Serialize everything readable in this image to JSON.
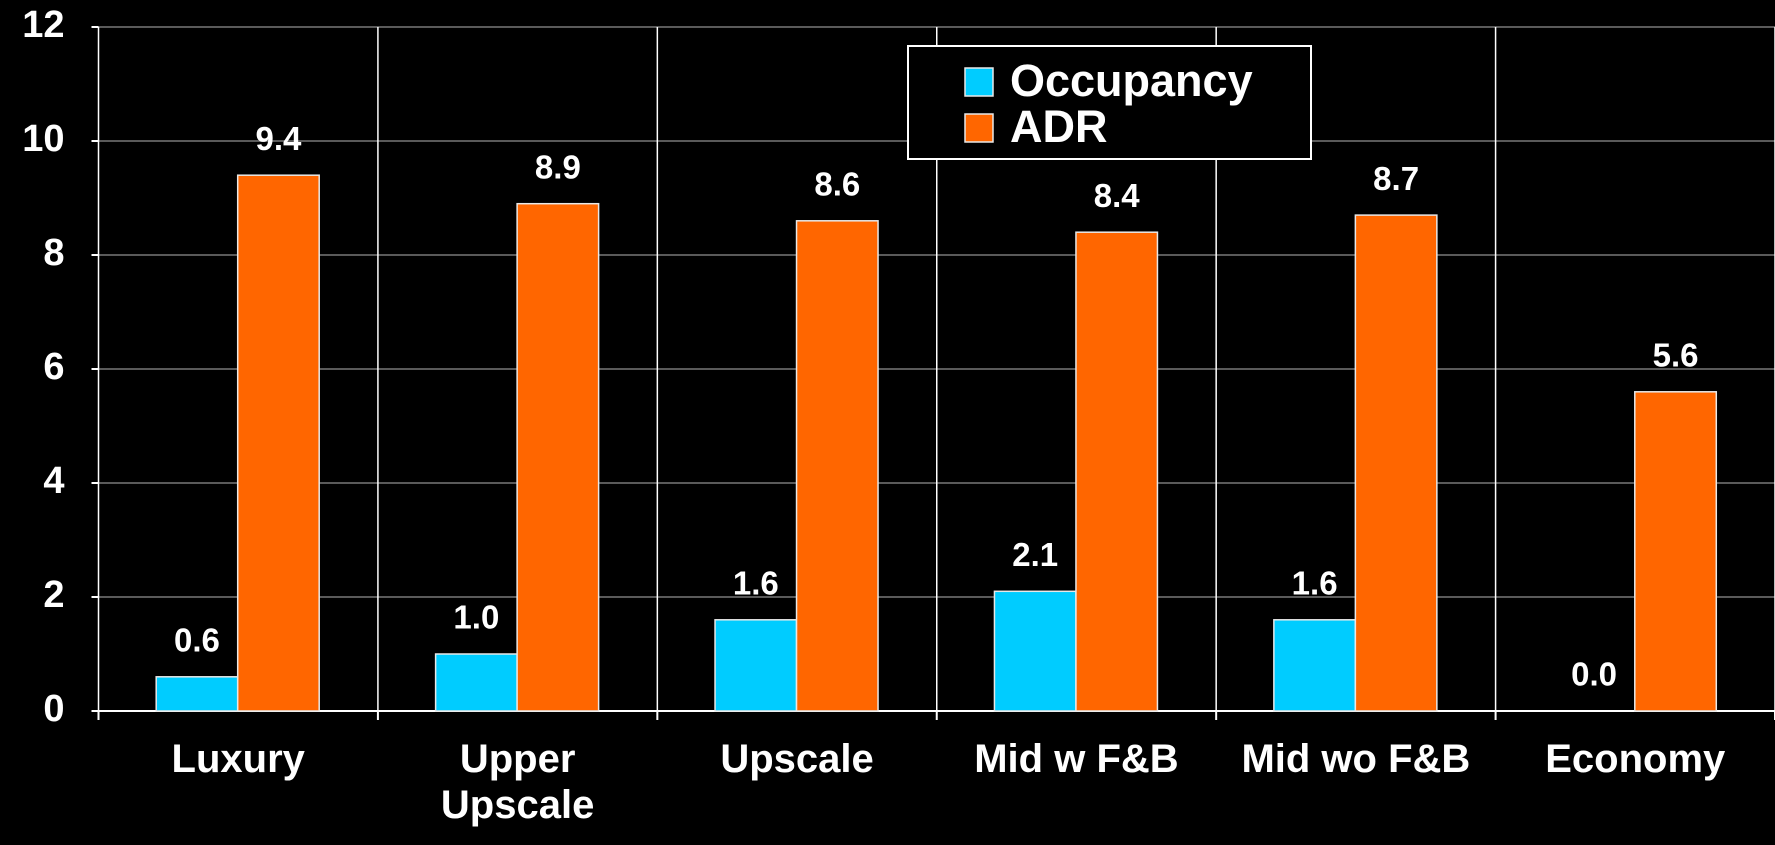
{
  "chart_data": {
    "type": "bar",
    "categories": [
      "Luxury",
      "Upper Upscale",
      "Upscale",
      "Mid w F&B",
      "Mid wo F&B",
      "Economy"
    ],
    "series": [
      {
        "name": "Occupancy",
        "color": "#00ccff",
        "values": [
          0.6,
          1.0,
          1.6,
          2.1,
          1.6,
          0.0
        ],
        "value_labels": [
          "0.6",
          "1.0",
          "1.6",
          "2.1",
          "1.6",
          "0.0"
        ]
      },
      {
        "name": "ADR",
        "color": "#ff6600",
        "values": [
          9.4,
          8.9,
          8.6,
          8.4,
          8.7,
          5.6
        ],
        "value_labels": [
          "9.4",
          "8.9",
          "8.6",
          "8.4",
          "8.7",
          "5.6"
        ]
      }
    ],
    "ylim": [
      0,
      12
    ],
    "yticks": [
      0,
      2,
      4,
      6,
      8,
      10,
      12
    ],
    "grid": true
  }
}
